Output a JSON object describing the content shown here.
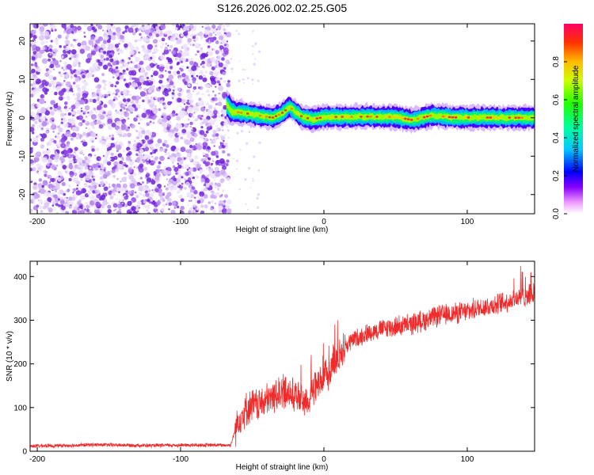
{
  "title": "S126.2026.002.02.25.G05",
  "chart_data": [
    {
      "type": "heatmap",
      "xlabel": "Height of straight line (km)",
      "ylabel": "Frequency (Hz)",
      "xlim": [
        -205,
        147
      ],
      "ylim": [
        -25,
        24.5
      ],
      "xticks": [
        -200,
        -100,
        0,
        100
      ],
      "yticks": [
        -20,
        -10,
        0,
        10,
        20
      ],
      "noise_region_x": [
        -205,
        -66
      ],
      "ridge_start_x": -68,
      "ridge": [
        {
          "x": -68,
          "y": 3.5
        },
        {
          "x": -64,
          "y": 1.6
        },
        {
          "x": -55,
          "y": 1.2
        },
        {
          "x": -45,
          "y": 0.6
        },
        {
          "x": -36,
          "y": 0.0
        },
        {
          "x": -30,
          "y": 1.0
        },
        {
          "x": -24,
          "y": 2.8
        },
        {
          "x": -20,
          "y": 1.6
        },
        {
          "x": -15,
          "y": 0.2
        },
        {
          "x": -8,
          "y": -0.4
        },
        {
          "x": 0,
          "y": 0.2
        },
        {
          "x": 30,
          "y": 0.3
        },
        {
          "x": 50,
          "y": 0.2
        },
        {
          "x": 62,
          "y": -0.6
        },
        {
          "x": 75,
          "y": 0.6
        },
        {
          "x": 90,
          "y": 0.1
        },
        {
          "x": 147,
          "y": 0.0
        }
      ],
      "colorbar": {
        "label": "Normalized spectral amplitude",
        "range": [
          0,
          1
        ],
        "ticks": [
          "0.0",
          "0.2",
          "0.4",
          "0.6",
          "0.8"
        ],
        "tick_values": [
          0.0,
          0.2,
          0.4,
          0.6,
          0.8
        ]
      }
    },
    {
      "type": "line",
      "xlabel": "Height of straight line (km)",
      "ylabel": "SNR (10 * v/v)",
      "xlim": [
        -205,
        147
      ],
      "ylim": [
        0,
        435
      ],
      "xticks": [
        -200,
        -100,
        0,
        100
      ],
      "yticks": [
        0,
        100,
        200,
        300,
        400
      ],
      "color": "#ef2b2b",
      "series": [
        {
          "name": "SNR",
          "x": [
            -205,
            -180,
            -160,
            -140,
            -120,
            -100,
            -80,
            -65,
            -60,
            -55,
            -50,
            -45,
            -40,
            -35,
            -30,
            -25,
            -20,
            -15,
            -10,
            -5,
            0,
            5,
            10,
            15,
            20,
            25,
            30,
            40,
            50,
            60,
            70,
            80,
            90,
            100,
            110,
            120,
            130,
            140,
            147
          ],
          "y": [
            12,
            13,
            15,
            14,
            13,
            14,
            14,
            14,
            70,
            95,
            105,
            108,
            115,
            125,
            135,
            140,
            125,
            115,
            120,
            150,
            160,
            195,
            215,
            240,
            255,
            262,
            270,
            280,
            285,
            290,
            300,
            310,
            315,
            320,
            330,
            335,
            345,
            355,
            360
          ]
        }
      ]
    }
  ],
  "colors": {
    "noise": "#7a2ee0",
    "line": "#ef2b2b",
    "axis": "#000000"
  }
}
